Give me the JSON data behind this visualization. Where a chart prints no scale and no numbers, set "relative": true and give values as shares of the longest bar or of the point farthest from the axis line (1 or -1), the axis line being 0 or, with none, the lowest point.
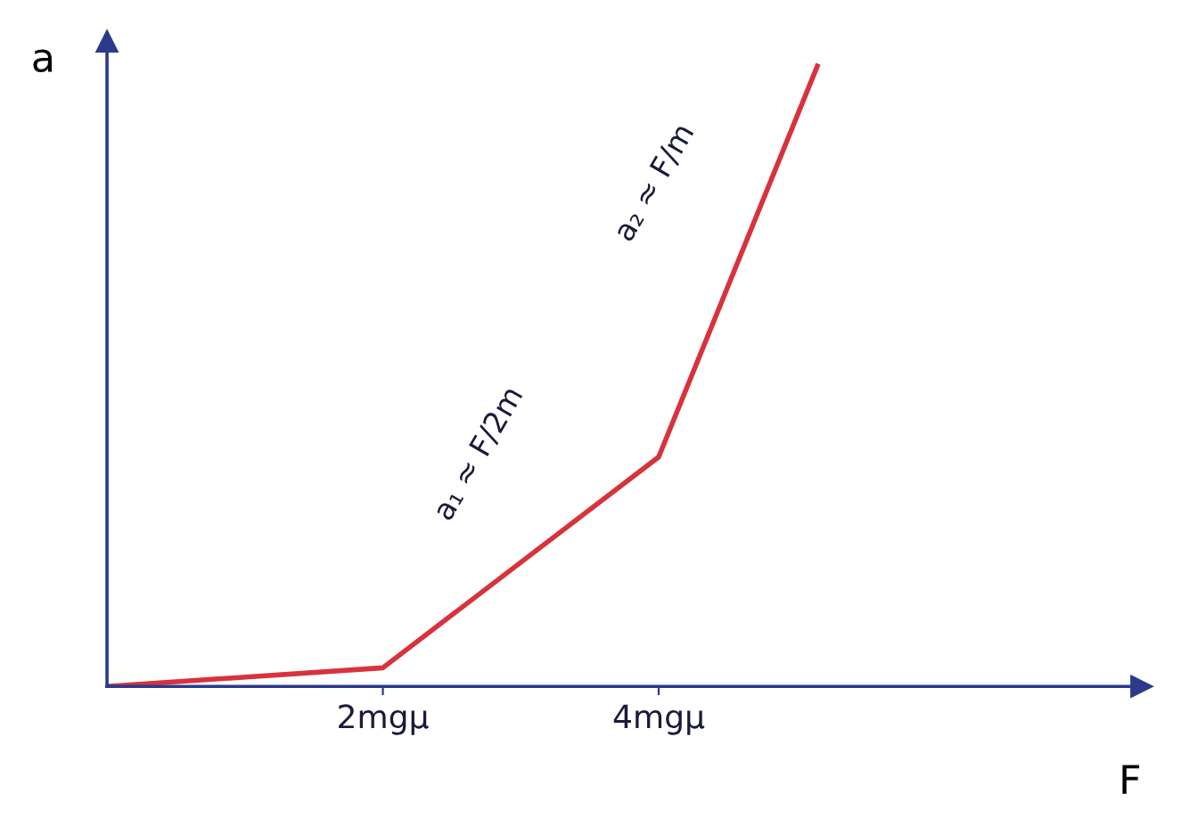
{
  "chart_data": {
    "type": "line",
    "xlabel": "F",
    "ylabel": "a",
    "relative": true,
    "x": [
      0,
      2,
      4,
      5.15
    ],
    "series": [
      {
        "color": "#d8323c",
        "values": [
          0,
          0.03,
          0.37,
          1
        ]
      }
    ],
    "xlim": [
      0,
      7.5
    ],
    "xticks": [
      {
        "value": 2,
        "label": "2mgμ"
      },
      {
        "value": 4,
        "label": "4mgμ"
      }
    ],
    "annotations": [
      "a₁ ≈ F/2m",
      "a₂ ≈ F/m"
    ]
  }
}
